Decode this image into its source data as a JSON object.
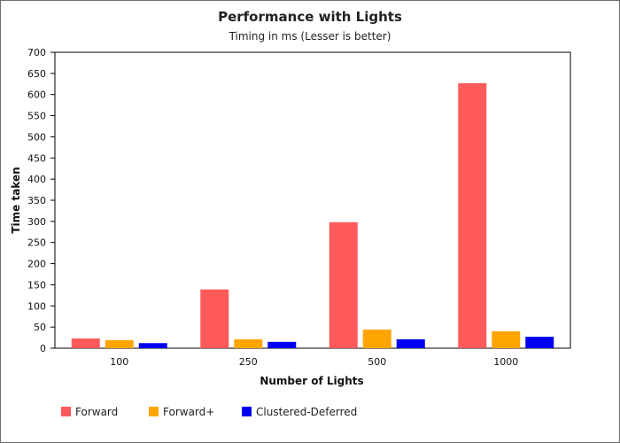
{
  "chart_data": {
    "type": "bar",
    "title": "Performance with Lights",
    "subtitle": "Timing in ms (Lesser is better)",
    "xlabel": "Number of Lights",
    "ylabel": "Time taken",
    "categories": [
      "100",
      "250",
      "500",
      "1000"
    ],
    "ylim": [
      0,
      700
    ],
    "yticks": [
      0,
      50,
      100,
      150,
      200,
      250,
      300,
      350,
      400,
      450,
      500,
      550,
      600,
      650,
      700
    ],
    "grid": false,
    "legend_position": "bottom-left",
    "series": [
      {
        "name": "Forward",
        "color": "#ff5a5a",
        "values": [
          23,
          139,
          298,
          627
        ]
      },
      {
        "name": "Forward+",
        "color": "#ffa500",
        "values": [
          19,
          21,
          44,
          40
        ]
      },
      {
        "name": "Clustered-Deferred",
        "color": "#0000f0",
        "values": [
          12,
          15,
          21,
          27
        ]
      }
    ]
  }
}
